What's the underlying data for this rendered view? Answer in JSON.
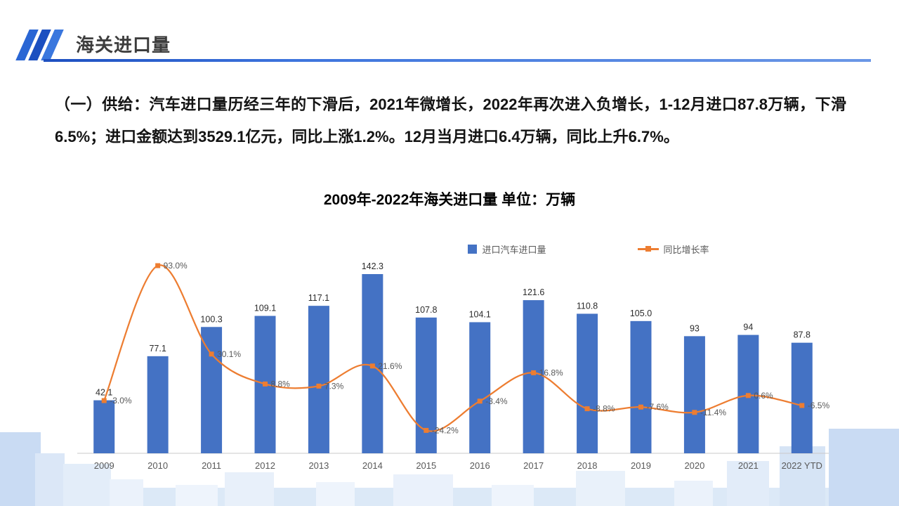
{
  "header": {
    "title": "海关进口量",
    "accent_color": "#2a66d4"
  },
  "paragraph": {
    "text": "（一）供给：汽车进口量历经三年的下滑后，2021年微增长，2022年再次进入负增长，1-12月进口87.8万辆，下滑6.5%；进口金额达到3529.1亿元，同比上涨1.2%。12月当月进口6.4万辆，同比上升6.7%。"
  },
  "chart_data": {
    "type": "bar",
    "combo": "bar+line",
    "title": "2009年-2022年海关进口量 单位：万辆",
    "unit": "万辆",
    "categories": [
      "2009",
      "2010",
      "2011",
      "2012",
      "2013",
      "2014",
      "2015",
      "2016",
      "2017",
      "2018",
      "2019",
      "2020",
      "2021",
      "2022 YTD"
    ],
    "series": [
      {
        "name": "进口汽车进口量",
        "type": "bar",
        "color": "#4472C4",
        "values": [
          42.1,
          77.1,
          100.3,
          109.1,
          117.1,
          142.3,
          107.8,
          104.1,
          121.6,
          110.8,
          105.0,
          93,
          94,
          87.8
        ],
        "labels": [
          "42.1",
          "77.1",
          "100.3",
          "109.1",
          "117.1",
          "142.3",
          "107.8",
          "104.1",
          "121.6",
          "110.8",
          "105.0",
          "93",
          "94",
          "87.8"
        ]
      },
      {
        "name": "同比增长率",
        "type": "line",
        "color": "#ED7D31",
        "values": [
          -3.0,
          93.0,
          30.1,
          8.8,
          7.3,
          21.6,
          -24.2,
          -3.4,
          16.8,
          -8.8,
          -7.6,
          -11.4,
          0.6,
          -6.5
        ],
        "labels": [
          "-3.0%",
          "93.0%",
          "30.1%",
          "8.8%",
          "7.3%",
          "21.6%",
          "-24.2%",
          "-3.4%",
          "16.8%",
          "-8.8%",
          "-7.6%",
          "-11.4%",
          "0.6%",
          "-6.5%"
        ]
      }
    ],
    "legend_position": "top",
    "grid": false,
    "bar_axis_range": [
      0,
      160
    ],
    "line_axis_range": [
      -40,
      100
    ]
  }
}
